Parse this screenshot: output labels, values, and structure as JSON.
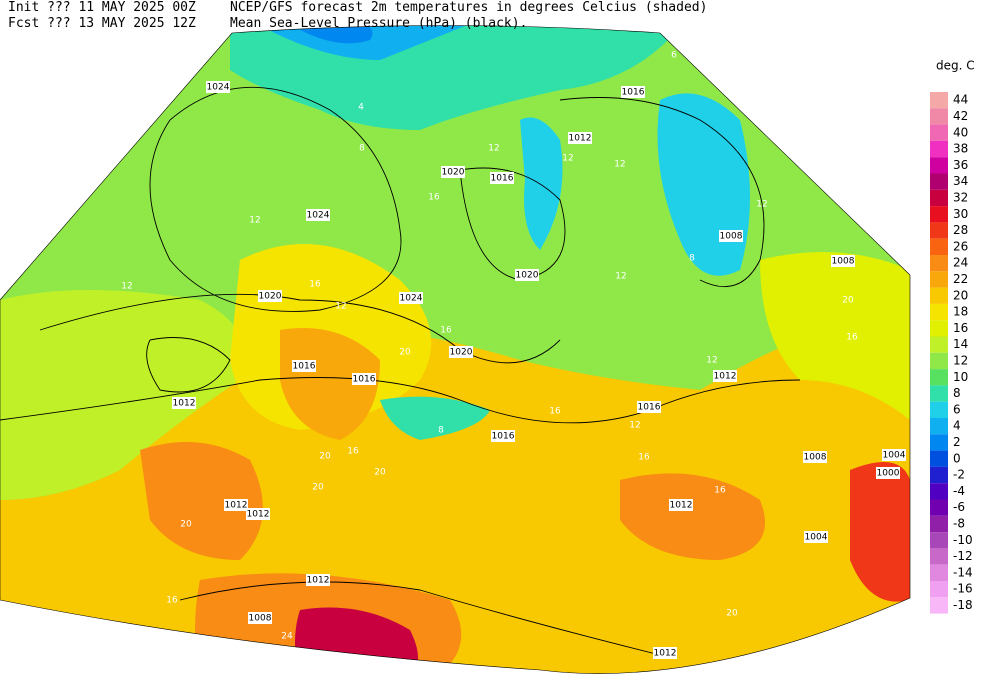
{
  "header": {
    "line1_left": "Init  ??? 11 MAY 2025 00Z",
    "line1_right": "NCEP/GFS forecast 2m temperatures in degrees Celcius (shaded)",
    "line2_left": "Fcst ??? 13 MAY 2025 12Z",
    "line2_right": "Mean Sea-Level Pressure (hPa) (black)."
  },
  "legend": {
    "title": "deg. C",
    "entries": [
      {
        "label": "44",
        "color": "#f4a8a8"
      },
      {
        "label": "42",
        "color": "#f088a8"
      },
      {
        "label": "40",
        "color": "#f068b4"
      },
      {
        "label": "38",
        "color": "#f030c0"
      },
      {
        "label": "36",
        "color": "#d000a0"
      },
      {
        "label": "34",
        "color": "#b00070"
      },
      {
        "label": "32",
        "color": "#c80040"
      },
      {
        "label": "30",
        "color": "#e81020"
      },
      {
        "label": "28",
        "color": "#f03818"
      },
      {
        "label": "26",
        "color": "#f86410"
      },
      {
        "label": "24",
        "color": "#f88c14"
      },
      {
        "label": "22",
        "color": "#f8a80a"
      },
      {
        "label": "20",
        "color": "#f8c800"
      },
      {
        "label": "18",
        "color": "#f5e400"
      },
      {
        "label": "16",
        "color": "#e0f000"
      },
      {
        "label": "14",
        "color": "#c0f028"
      },
      {
        "label": "12",
        "color": "#90e848"
      },
      {
        "label": "10",
        "color": "#58e060"
      },
      {
        "label": "8",
        "color": "#30e0a8"
      },
      {
        "label": "6",
        "color": "#20d0e8"
      },
      {
        "label": "4",
        "color": "#10b0f0"
      },
      {
        "label": "2",
        "color": "#0088f0"
      },
      {
        "label": "0",
        "color": "#0050e0"
      },
      {
        "label": "-2",
        "color": "#2020d0"
      },
      {
        "label": "-4",
        "color": "#5000c0"
      },
      {
        "label": "-6",
        "color": "#7000b0"
      },
      {
        "label": "-8",
        "color": "#9020a8"
      },
      {
        "label": "-10",
        "color": "#a848b8"
      },
      {
        "label": "-12",
        "color": "#c868c8"
      },
      {
        "label": "-14",
        "color": "#e088e0"
      },
      {
        "label": "-16",
        "color": "#f0a0f0"
      },
      {
        "label": "-18",
        "color": "#f8b8f8"
      }
    ]
  },
  "isobar_labels": [
    "1024",
    "1016",
    "1012",
    "1020",
    "1016",
    "1024",
    "1008",
    "1008",
    "1020",
    "1020",
    "1024",
    "1020",
    "1016",
    "1016",
    "1012",
    "1012",
    "1016",
    "1016",
    "1008",
    "1004",
    "1000",
    "1012",
    "1012",
    "1012",
    "1004",
    "1012",
    "1008",
    "1012"
  ],
  "temperature_labels": [
    "8",
    "4",
    "12",
    "12",
    "16",
    "12",
    "20",
    "16",
    "16",
    "12",
    "16",
    "20",
    "20",
    "20",
    "16",
    "24",
    "20",
    "16",
    "20",
    "16",
    "12",
    "12",
    "12",
    "12",
    "16",
    "12",
    "8",
    "12",
    "16",
    "8",
    "6",
    "20"
  ]
}
